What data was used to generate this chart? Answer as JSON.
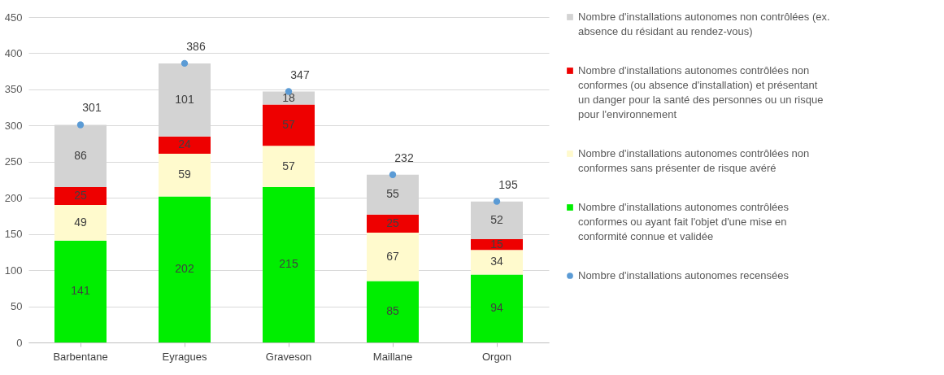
{
  "chart_data": {
    "type": "bar",
    "stacked": true,
    "data_labels": true,
    "grid": "y",
    "legend": "right",
    "marker": "circle",
    "categories": [
      "Barbentane",
      "Eyragues",
      "Graveson",
      "Maillane",
      "Orgon"
    ],
    "ylim": [
      0,
      450
    ],
    "yticks": [
      0,
      50,
      100,
      150,
      200,
      250,
      300,
      350,
      400,
      450
    ],
    "series": [
      {
        "name": "Nombre d'installations autonomes contrôlées conformes ou ayant fait l'objet d'une mise en conformité connue et validée",
        "color": "#00ee00",
        "values": [
          141,
          202,
          215,
          85,
          94
        ]
      },
      {
        "name": "Nombre d'installations autonomes contrôlées non conformes sans présenter de risque avéré",
        "color": "#fffacd",
        "values": [
          49,
          59,
          57,
          67,
          34
        ]
      },
      {
        "name": "Nombre d'installations autonomes contrôlées non conformes (ou absence d'installation) et présentant un danger pour la santé des personnes ou un risque pour l'environnement",
        "color": "#ee0000",
        "values": [
          25,
          24,
          57,
          25,
          15
        ]
      },
      {
        "name": "Nombre d'installations autonomes non contrôlées (ex. absence du résidant au rendez-vous)",
        "color": "#d3d3d3",
        "values": [
          86,
          101,
          18,
          55,
          52
        ]
      },
      {
        "name": "Nombre d'installations autonomes recensées",
        "type": "scatter",
        "color": "#5b9bd5",
        "values": [
          301,
          386,
          347,
          232,
          195
        ]
      }
    ]
  }
}
